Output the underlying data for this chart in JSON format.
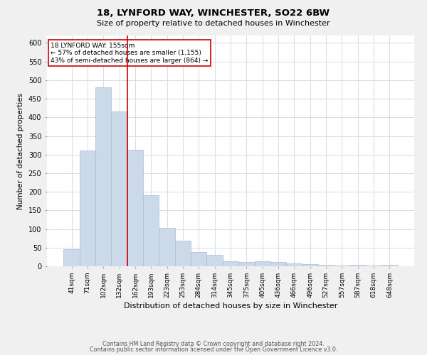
{
  "title": "18, LYNFORD WAY, WINCHESTER, SO22 6BW",
  "subtitle": "Size of property relative to detached houses in Winchester",
  "xlabel": "Distribution of detached houses by size in Winchester",
  "ylabel": "Number of detached properties",
  "categories": [
    "41sqm",
    "71sqm",
    "102sqm",
    "132sqm",
    "162sqm",
    "193sqm",
    "223sqm",
    "253sqm",
    "284sqm",
    "314sqm",
    "345sqm",
    "375sqm",
    "405sqm",
    "436sqm",
    "466sqm",
    "496sqm",
    "527sqm",
    "557sqm",
    "587sqm",
    "618sqm",
    "648sqm"
  ],
  "values": [
    46,
    311,
    480,
    415,
    313,
    190,
    103,
    69,
    38,
    31,
    14,
    11,
    13,
    12,
    8,
    5,
    4,
    1,
    4,
    1,
    4
  ],
  "bar_color": "#ccd9e8",
  "bar_edge_color": "#a8bdd0",
  "vline_color": "#cc0000",
  "annotation_title": "18 LYNFORD WAY: 155sqm",
  "annotation_line1": "← 57% of detached houses are smaller (1,155)",
  "annotation_line2": "43% of semi-detached houses are larger (864) →",
  "annotation_box_edge_color": "#cc0000",
  "ylim": [
    0,
    620
  ],
  "yticks": [
    0,
    50,
    100,
    150,
    200,
    250,
    300,
    350,
    400,
    450,
    500,
    550,
    600
  ],
  "footer1": "Contains HM Land Registry data © Crown copyright and database right 2024.",
  "footer2": "Contains public sector information licensed under the Open Government Licence v3.0.",
  "bg_color": "#f0f0f0",
  "plot_bg_color": "#ffffff",
  "grid_color": "#d0d8e8"
}
